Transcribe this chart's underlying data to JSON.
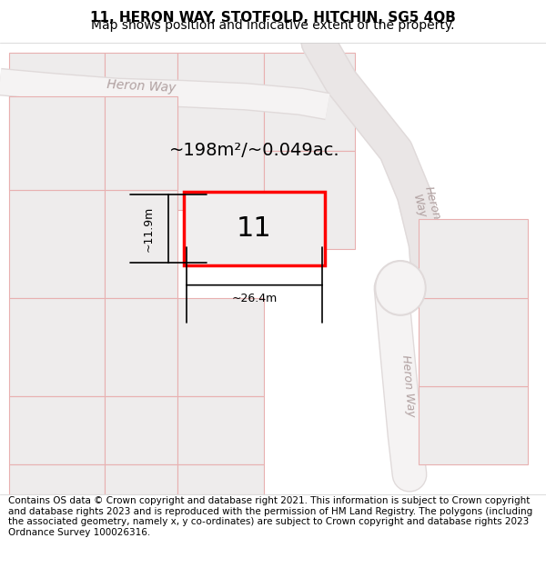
{
  "title": "11, HERON WAY, STOTFOLD, HITCHIN, SG5 4QB",
  "subtitle": "Map shows position and indicative extent of the property.",
  "area_label": "~198m²/~0.049ac.",
  "dim_width": "~26.4m",
  "dim_height": "~11.9m",
  "plot_number": "11",
  "footer": "Contains OS data © Crown copyright and database right 2021. This information is subject to Crown copyright and database rights 2023 and is reproduced with the permission of HM Land Registry. The polygons (including the associated geometry, namely x, y co-ordinates) are subject to Crown copyright and database rights 2023 Ordnance Survey 100026316.",
  "bg_color": "#f0eeee",
  "map_bg": "#f8f6f6",
  "road_fill": "#e8e4e4",
  "grid_line_color": "#e8b0b0",
  "highlight_color": "#ff0000",
  "road_label_color": "#b0a0a0",
  "title_fontsize": 11,
  "subtitle_fontsize": 10,
  "footer_fontsize": 7.5
}
